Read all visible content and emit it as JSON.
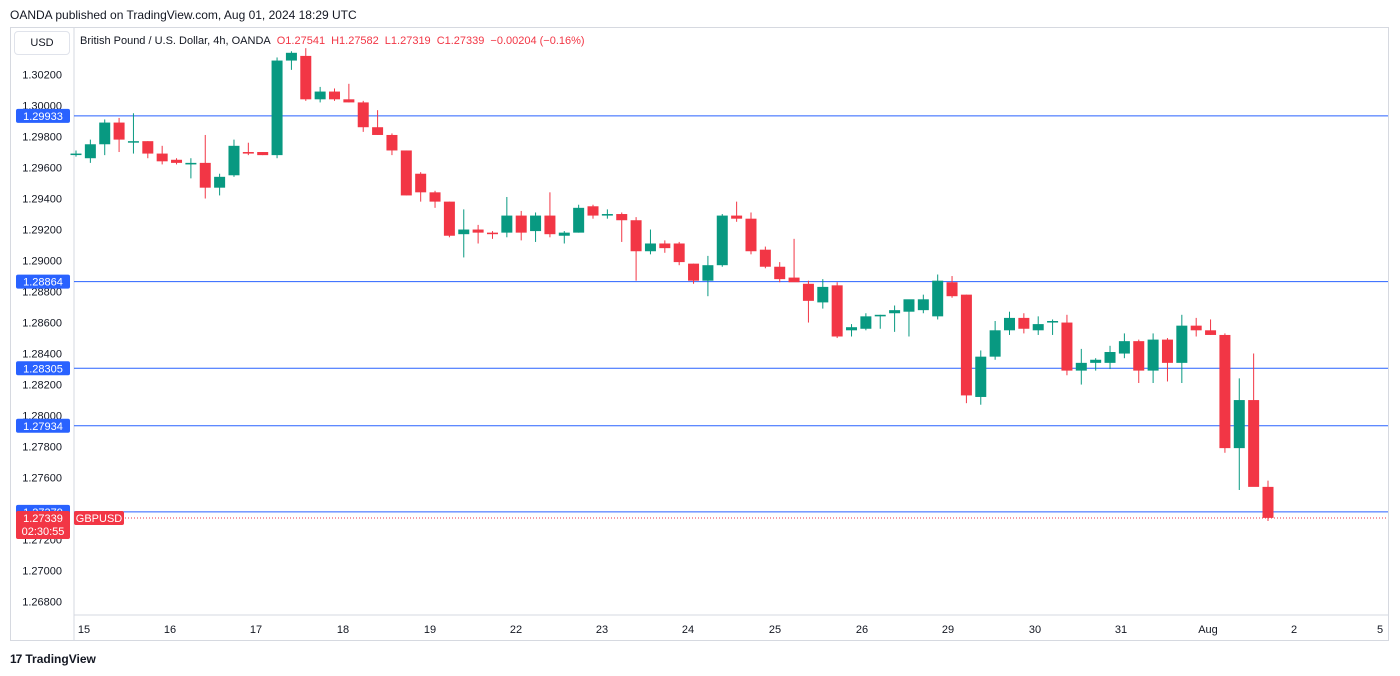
{
  "header": {
    "published": "OANDA published on TradingView.com, Aug 01, 2024 18:29 UTC"
  },
  "currency_button": "USD",
  "legend": {
    "symbol": "British Pound / U.S. Dollar, 4h, OANDA",
    "open": "O1.27541",
    "high": "H1.27582",
    "low": "L1.27319",
    "close": "C1.27339",
    "change": "−0.00204 (−0.16%)"
  },
  "footer": {
    "brand": "TradingView",
    "logo_text": "17"
  },
  "colors": {
    "up": "#089981",
    "down": "#f23645",
    "hline": "#2962ff",
    "last": "#f23645"
  },
  "chart_data": {
    "type": "candlestick",
    "symbol": "GBPUSD",
    "timeframe": "4h",
    "ylim": [
      1.2672,
      1.305
    ],
    "y_ticks": [
      "1.30200",
      "1.30000",
      "1.29800",
      "1.29600",
      "1.29400",
      "1.29200",
      "1.29000",
      "1.28800",
      "1.28600",
      "1.28400",
      "1.28200",
      "1.28000",
      "1.27800",
      "1.27600",
      "1.27200",
      "1.27000",
      "1.26800"
    ],
    "x_labels": [
      "15",
      "16",
      "17",
      "18",
      "19",
      "22",
      "23",
      "24",
      "25",
      "26",
      "29",
      "30",
      "31",
      "Aug",
      "2",
      "5"
    ],
    "horizontal_lines": [
      "1.29933",
      "1.28864",
      "1.28305",
      "1.27934",
      "1.27379"
    ],
    "last_price": {
      "label": "1.27339",
      "symbol": "GBPUSD",
      "countdown": "02:30:55"
    },
    "candles": [
      {
        "o": 1.2969,
        "h": 1.2971,
        "l": 1.2967,
        "c": 1.2969
      },
      {
        "o": 1.2966,
        "h": 1.2978,
        "l": 1.2963,
        "c": 1.2975
      },
      {
        "o": 1.2975,
        "h": 1.2991,
        "l": 1.2968,
        "c": 1.2989
      },
      {
        "o": 1.2989,
        "h": 1.2992,
        "l": 1.297,
        "c": 1.2978
      },
      {
        "o": 1.2977,
        "h": 1.2995,
        "l": 1.2969,
        "c": 1.2977
      },
      {
        "o": 1.2977,
        "h": 1.2977,
        "l": 1.2966,
        "c": 1.2969
      },
      {
        "o": 1.2969,
        "h": 1.2974,
        "l": 1.2962,
        "c": 1.2964
      },
      {
        "o": 1.2965,
        "h": 1.2966,
        "l": 1.2962,
        "c": 1.2963
      },
      {
        "o": 1.2962,
        "h": 1.2966,
        "l": 1.2953,
        "c": 1.2963
      },
      {
        "o": 1.2963,
        "h": 1.2981,
        "l": 1.294,
        "c": 1.2947
      },
      {
        "o": 1.2947,
        "h": 1.2956,
        "l": 1.2942,
        "c": 1.2954
      },
      {
        "o": 1.2955,
        "h": 1.2978,
        "l": 1.2954,
        "c": 1.2974
      },
      {
        "o": 1.297,
        "h": 1.2976,
        "l": 1.2968,
        "c": 1.2969
      },
      {
        "o": 1.297,
        "h": 1.297,
        "l": 1.2968,
        "c": 1.2968
      },
      {
        "o": 1.2968,
        "h": 1.3031,
        "l": 1.2966,
        "c": 1.3029
      },
      {
        "o": 1.3029,
        "h": 1.3035,
        "l": 1.3023,
        "c": 1.3034
      },
      {
        "o": 1.3032,
        "h": 1.3037,
        "l": 1.3003,
        "c": 1.3004
      },
      {
        "o": 1.3004,
        "h": 1.3012,
        "l": 1.3002,
        "c": 1.3009
      },
      {
        "o": 1.3009,
        "h": 1.3011,
        "l": 1.3003,
        "c": 1.3004
      },
      {
        "o": 1.3004,
        "h": 1.3014,
        "l": 1.3002,
        "c": 1.3002
      },
      {
        "o": 1.3002,
        "h": 1.3003,
        "l": 1.2983,
        "c": 1.2986
      },
      {
        "o": 1.2986,
        "h": 1.2997,
        "l": 1.2981,
        "c": 1.2981
      },
      {
        "o": 1.2981,
        "h": 1.2982,
        "l": 1.2968,
        "c": 1.2971
      },
      {
        "o": 1.2971,
        "h": 1.2971,
        "l": 1.2942,
        "c": 1.2942
      },
      {
        "o": 1.2956,
        "h": 1.2957,
        "l": 1.2938,
        "c": 1.2944
      },
      {
        "o": 1.2944,
        "h": 1.2945,
        "l": 1.2934,
        "c": 1.2938
      },
      {
        "o": 1.2938,
        "h": 1.2938,
        "l": 1.2915,
        "c": 1.2916
      },
      {
        "o": 1.2917,
        "h": 1.2933,
        "l": 1.2902,
        "c": 1.292
      },
      {
        "o": 1.292,
        "h": 1.2923,
        "l": 1.2911,
        "c": 1.2918
      },
      {
        "o": 1.2918,
        "h": 1.2919,
        "l": 1.2914,
        "c": 1.2917
      },
      {
        "o": 1.2918,
        "h": 1.2941,
        "l": 1.2915,
        "c": 1.2929
      },
      {
        "o": 1.2929,
        "h": 1.2932,
        "l": 1.2913,
        "c": 1.2918
      },
      {
        "o": 1.2919,
        "h": 1.2931,
        "l": 1.2912,
        "c": 1.2929
      },
      {
        "o": 1.2929,
        "h": 1.2944,
        "l": 1.2915,
        "c": 1.2917
      },
      {
        "o": 1.2916,
        "h": 1.2919,
        "l": 1.2911,
        "c": 1.2918
      },
      {
        "o": 1.2918,
        "h": 1.2936,
        "l": 1.2918,
        "c": 1.2934
      },
      {
        "o": 1.2935,
        "h": 1.2936,
        "l": 1.2927,
        "c": 1.2929
      },
      {
        "o": 1.2929,
        "h": 1.2933,
        "l": 1.2927,
        "c": 1.293
      },
      {
        "o": 1.293,
        "h": 1.2931,
        "l": 1.2912,
        "c": 1.2926
      },
      {
        "o": 1.2926,
        "h": 1.2928,
        "l": 1.2887,
        "c": 1.2906
      },
      {
        "o": 1.2906,
        "h": 1.292,
        "l": 1.2904,
        "c": 1.2911
      },
      {
        "o": 1.2911,
        "h": 1.2913,
        "l": 1.2905,
        "c": 1.2908
      },
      {
        "o": 1.2911,
        "h": 1.2912,
        "l": 1.2897,
        "c": 1.2899
      },
      {
        "o": 1.2898,
        "h": 1.2898,
        "l": 1.2885,
        "c": 1.2887
      },
      {
        "o": 1.2887,
        "h": 1.2903,
        "l": 1.2877,
        "c": 1.2897
      },
      {
        "o": 1.2897,
        "h": 1.293,
        "l": 1.2896,
        "c": 1.2929
      },
      {
        "o": 1.2929,
        "h": 1.2938,
        "l": 1.2925,
        "c": 1.2927
      },
      {
        "o": 1.2927,
        "h": 1.2931,
        "l": 1.2904,
        "c": 1.2906
      },
      {
        "o": 1.2907,
        "h": 1.2909,
        "l": 1.2895,
        "c": 1.2896
      },
      {
        "o": 1.2896,
        "h": 1.2899,
        "l": 1.2886,
        "c": 1.2888
      },
      {
        "o": 1.2889,
        "h": 1.2914,
        "l": 1.2887,
        "c": 1.2886
      },
      {
        "o": 1.2885,
        "h": 1.2887,
        "l": 1.286,
        "c": 1.2874
      },
      {
        "o": 1.2873,
        "h": 1.2888,
        "l": 1.2869,
        "c": 1.2883
      },
      {
        "o": 1.2884,
        "h": 1.2886,
        "l": 1.285,
        "c": 1.2851
      },
      {
        "o": 1.2855,
        "h": 1.2859,
        "l": 1.2851,
        "c": 1.2857
      },
      {
        "o": 1.2856,
        "h": 1.2866,
        "l": 1.2855,
        "c": 1.2864
      },
      {
        "o": 1.2864,
        "h": 1.2865,
        "l": 1.2856,
        "c": 1.2865
      },
      {
        "o": 1.2866,
        "h": 1.2871,
        "l": 1.2854,
        "c": 1.2868
      },
      {
        "o": 1.2867,
        "h": 1.2874,
        "l": 1.2851,
        "c": 1.2875
      },
      {
        "o": 1.2868,
        "h": 1.2878,
        "l": 1.2866,
        "c": 1.2875
      },
      {
        "o": 1.2864,
        "h": 1.2891,
        "l": 1.2862,
        "c": 1.2887
      },
      {
        "o": 1.2886,
        "h": 1.289,
        "l": 1.2876,
        "c": 1.2877
      },
      {
        "o": 1.2878,
        "h": 1.2878,
        "l": 1.2808,
        "c": 1.2813
      },
      {
        "o": 1.2812,
        "h": 1.2842,
        "l": 1.2807,
        "c": 1.2838
      },
      {
        "o": 1.2838,
        "h": 1.2861,
        "l": 1.2836,
        "c": 1.2855
      },
      {
        "o": 1.2855,
        "h": 1.2867,
        "l": 1.2852,
        "c": 1.2863
      },
      {
        "o": 1.2863,
        "h": 1.2866,
        "l": 1.2853,
        "c": 1.2856
      },
      {
        "o": 1.2855,
        "h": 1.2864,
        "l": 1.2852,
        "c": 1.2859
      },
      {
        "o": 1.286,
        "h": 1.2862,
        "l": 1.2852,
        "c": 1.2861
      },
      {
        "o": 1.286,
        "h": 1.2865,
        "l": 1.2826,
        "c": 1.2829
      },
      {
        "o": 1.2829,
        "h": 1.2843,
        "l": 1.282,
        "c": 1.2834
      },
      {
        "o": 1.2834,
        "h": 1.2837,
        "l": 1.2829,
        "c": 1.2836
      },
      {
        "o": 1.2834,
        "h": 1.2845,
        "l": 1.283,
        "c": 1.2841
      },
      {
        "o": 1.284,
        "h": 1.2853,
        "l": 1.2837,
        "c": 1.2848
      },
      {
        "o": 1.2848,
        "h": 1.2849,
        "l": 1.2821,
        "c": 1.2829
      },
      {
        "o": 1.2829,
        "h": 1.2853,
        "l": 1.2821,
        "c": 1.2849
      },
      {
        "o": 1.2849,
        "h": 1.285,
        "l": 1.2822,
        "c": 1.2834
      },
      {
        "o": 1.2834,
        "h": 1.2865,
        "l": 1.2821,
        "c": 1.2858
      },
      {
        "o": 1.2858,
        "h": 1.2863,
        "l": 1.2851,
        "c": 1.2855
      },
      {
        "o": 1.2855,
        "h": 1.2862,
        "l": 1.2852,
        "c": 1.2852
      },
      {
        "o": 1.2852,
        "h": 1.2853,
        "l": 1.2776,
        "c": 1.2779
      },
      {
        "o": 1.2779,
        "h": 1.2824,
        "l": 1.2752,
        "c": 1.281
      },
      {
        "o": 1.281,
        "h": 1.284,
        "l": 1.2755,
        "c": 1.2754
      },
      {
        "o": 1.2754,
        "h": 1.2758,
        "l": 1.2732,
        "c": 1.2734
      }
    ]
  }
}
